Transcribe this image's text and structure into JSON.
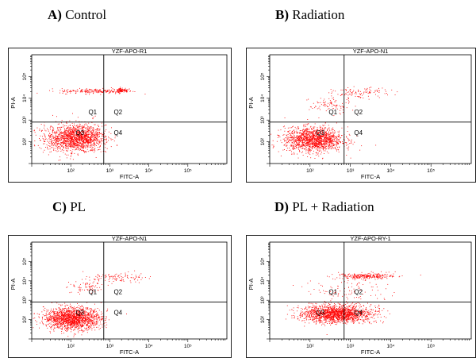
{
  "figure": {
    "panels": [
      {
        "letter": "A)",
        "title": "Control",
        "plot_title": "YZF-APO-R1"
      },
      {
        "letter": "B)",
        "title": "Radiation",
        "plot_title": "YZF-APO-N1"
      },
      {
        "letter": "C)",
        "title": "PL",
        "plot_title": "YZF-APO-N1"
      },
      {
        "letter": "D)",
        "title": "PL + Radiation",
        "plot_title": "YZF-APO-RY-1"
      }
    ]
  },
  "chart_data": [
    {
      "type": "scatter",
      "title": "YZF-APO-R1",
      "xlabel": "FITC-A",
      "ylabel": "PI-A",
      "xscale": "log",
      "yscale": "log",
      "xlim": [
        10,
        1000000
      ],
      "ylim": [
        10,
        1000000
      ],
      "x_tick_labels": [
        "10²",
        "10³",
        "10⁴",
        "10⁵"
      ],
      "y_tick_labels": [
        "10²",
        "10³",
        "10⁴",
        "10⁵"
      ],
      "quadrant_gate": {
        "x": 700,
        "y": 800
      },
      "quadrant_labels": [
        "Q1",
        "Q2",
        "Q3",
        "Q4"
      ],
      "point_color": "#ff0000",
      "populations": [
        {
          "center": [
            130,
            150
          ],
          "spread": [
            0.38,
            0.3
          ],
          "n": 1600
        },
        {
          "center": [
            420,
            22000
          ],
          "spread": [
            0.45,
            0.06
          ],
          "n": 200
        },
        {
          "center": [
            2000,
            25000
          ],
          "spread": [
            0.08,
            0.05
          ],
          "n": 90
        }
      ]
    },
    {
      "type": "scatter",
      "title": "YZF-APO-N1",
      "xlabel": "FITC-A",
      "ylabel": "PI-A",
      "xscale": "log",
      "yscale": "log",
      "xlim": [
        10,
        1000000
      ],
      "ylim": [
        10,
        1000000
      ],
      "x_tick_labels": [
        "10²",
        "10³",
        "10⁴",
        "10⁵"
      ],
      "y_tick_labels": [
        "10²",
        "10³",
        "10⁴",
        "10⁵"
      ],
      "quadrant_gate": {
        "x": 700,
        "y": 800
      },
      "quadrant_labels": [
        "Q1",
        "Q2",
        "Q3",
        "Q4"
      ],
      "point_color": "#ff0000",
      "populations": [
        {
          "center": [
            120,
            130
          ],
          "spread": [
            0.36,
            0.28
          ],
          "n": 1500
        },
        {
          "center": [
            300,
            5000
          ],
          "spread": [
            0.25,
            0.2
          ],
          "n": 90
        },
        {
          "center": [
            1800,
            18000
          ],
          "spread": [
            0.35,
            0.12
          ],
          "n": 110
        }
      ]
    },
    {
      "type": "scatter",
      "title": "YZF-APO-N1",
      "xlabel": "FITC-A",
      "ylabel": "PI-A",
      "xscale": "log",
      "yscale": "log",
      "xlim": [
        10,
        1000000
      ],
      "ylim": [
        10,
        1000000
      ],
      "x_tick_labels": [
        "10²",
        "10³",
        "10⁴",
        "10⁵"
      ],
      "y_tick_labels": [
        "10²",
        "10³",
        "10⁴",
        "10⁵"
      ],
      "quadrant_gate": {
        "x": 700,
        "y": 800
      },
      "quadrant_labels": [
        "Q1",
        "Q2",
        "Q3",
        "Q4"
      ],
      "point_color": "#ff0000",
      "populations": [
        {
          "center": [
            110,
            120
          ],
          "spread": [
            0.36,
            0.28
          ],
          "n": 1600
        },
        {
          "center": [
            280,
            5500
          ],
          "spread": [
            0.25,
            0.2
          ],
          "n": 80
        },
        {
          "center": [
            1700,
            16000
          ],
          "spread": [
            0.35,
            0.12
          ],
          "n": 100
        }
      ]
    },
    {
      "type": "scatter",
      "title": "YZF-APO-RY-1",
      "xlabel": "FITC-A",
      "ylabel": "PI-A",
      "xscale": "log",
      "yscale": "log",
      "xlim": [
        10,
        1000000
      ],
      "ylim": [
        10,
        1000000
      ],
      "x_tick_labels": [
        "10²",
        "10³",
        "10⁴",
        "10⁵"
      ],
      "y_tick_labels": [
        "10²",
        "10³",
        "10⁴",
        "10⁵"
      ],
      "quadrant_gate": {
        "x": 700,
        "y": 800
      },
      "quadrant_labels": [
        "Q1",
        "Q2",
        "Q3",
        "Q4"
      ],
      "point_color": "#ff0000",
      "populations": [
        {
          "center": [
            450,
            200
          ],
          "spread": [
            0.42,
            0.22
          ],
          "n": 1700
        },
        {
          "center": [
            2500,
            18000
          ],
          "spread": [
            0.35,
            0.08
          ],
          "n": 260
        },
        {
          "center": [
            900,
            3000
          ],
          "spread": [
            0.55,
            0.35
          ],
          "n": 120
        }
      ]
    }
  ]
}
